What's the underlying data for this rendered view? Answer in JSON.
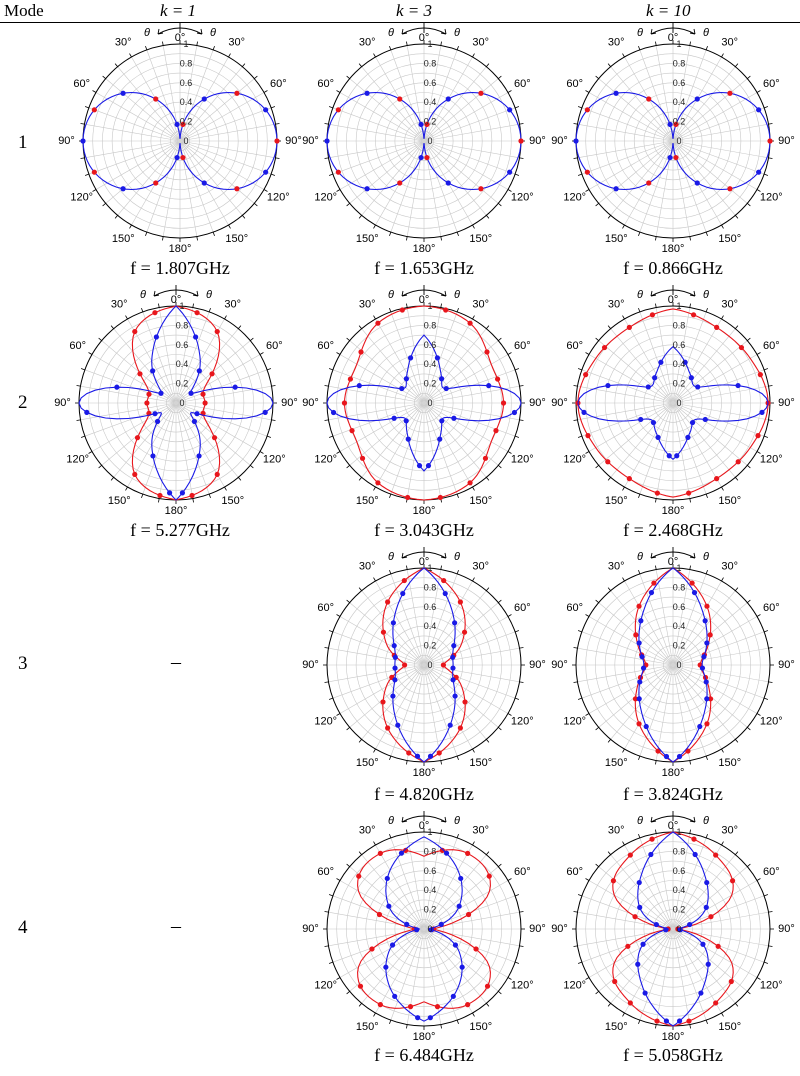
{
  "table": {
    "header": {
      "mode": "Mode",
      "columns": [
        "k = 1",
        "k = 3",
        "k = 10"
      ]
    },
    "rows": [
      {
        "mode": "1",
        "cells": [
          "f = 1.807GHz",
          "f = 1.653GHz",
          "f = 0.866GHz"
        ]
      },
      {
        "mode": "2",
        "cells": [
          "f = 5.277GHz",
          "f = 3.043GHz",
          "f = 2.468GHz"
        ]
      },
      {
        "mode": "3",
        "cells": [
          "–",
          "f = 4.820GHz",
          "f = 3.824GHz"
        ]
      },
      {
        "mode": "4",
        "cells": [
          "–",
          "f = 6.484GHz",
          "f = 5.058GHz"
        ]
      }
    ]
  },
  "polar_axis": {
    "theta_labels": [
      "0°",
      "30°",
      "60°",
      "90°",
      "120°",
      "150°",
      "180°",
      "150°",
      "120°",
      "90°",
      "60°",
      "30°"
    ],
    "r_ticks": [
      "0",
      "0.2",
      "0.4",
      "0.6",
      "0.8",
      "1"
    ],
    "theta_arrow_label": "θ"
  },
  "colors": {
    "series_a": "#e8161c",
    "series_b": "#1a1ae6",
    "grid": "#c8c8c8"
  },
  "chart_data": [
    {
      "type": "polar",
      "mode": 1,
      "k": 1,
      "rlim": [
        0,
        1
      ],
      "series": [
        {
          "pattern": "dipole",
          "values_deg_r": [
            [
              0,
              0.05
            ],
            [
              30,
              0.5
            ],
            [
              60,
              0.87
            ],
            [
              90,
              1
            ],
            [
              120,
              0.87
            ],
            [
              150,
              0.5
            ],
            [
              180,
              0.05
            ]
          ]
        }
      ]
    },
    {
      "type": "polar",
      "mode": 1,
      "k": 3,
      "rlim": [
        0,
        1
      ],
      "series": [
        {
          "pattern": "dipole",
          "values_deg_r": [
            [
              0,
              0.05
            ],
            [
              30,
              0.5
            ],
            [
              60,
              0.87
            ],
            [
              90,
              1
            ],
            [
              120,
              0.87
            ],
            [
              150,
              0.5
            ],
            [
              180,
              0.05
            ]
          ]
        }
      ]
    },
    {
      "type": "polar",
      "mode": 1,
      "k": 10,
      "rlim": [
        0,
        1
      ],
      "series": [
        {
          "pattern": "dipole",
          "values_deg_r": [
            [
              0,
              0.05
            ],
            [
              30,
              0.5
            ],
            [
              60,
              0.87
            ],
            [
              90,
              1
            ],
            [
              120,
              0.87
            ],
            [
              150,
              0.5
            ],
            [
              180,
              0.05
            ]
          ]
        }
      ]
    },
    {
      "type": "polar",
      "mode": 2,
      "k": 1,
      "rlim": [
        0,
        1
      ],
      "series": [
        {
          "values_deg_r": [
            [
              0,
              1
            ],
            [
              30,
              0.85
            ],
            [
              60,
              0.35
            ],
            [
              90,
              0.3
            ],
            [
              120,
              0.35
            ],
            [
              150,
              0.85
            ],
            [
              180,
              1
            ]
          ]
        },
        {
          "values_deg_r": [
            [
              0,
              1
            ],
            [
              30,
              0.5
            ],
            [
              60,
              0.2
            ],
            [
              90,
              1
            ],
            [
              120,
              0.2
            ],
            [
              150,
              0.5
            ],
            [
              180,
              1
            ]
          ]
        }
      ]
    },
    {
      "type": "polar",
      "mode": 2,
      "k": 3,
      "rlim": [
        0,
        1
      ],
      "series": [
        {
          "values_deg_r": [
            [
              0,
              1
            ],
            [
              30,
              0.95
            ],
            [
              60,
              0.8
            ],
            [
              90,
              0.82
            ],
            [
              120,
              0.8
            ],
            [
              150,
              0.95
            ],
            [
              180,
              1
            ]
          ]
        },
        {
          "values_deg_r": [
            [
              0,
              0.7
            ],
            [
              30,
              0.35
            ],
            [
              60,
              0.3
            ],
            [
              90,
              1
            ],
            [
              120,
              0.3
            ],
            [
              150,
              0.35
            ],
            [
              180,
              0.7
            ]
          ]
        }
      ]
    },
    {
      "type": "polar",
      "mode": 2,
      "k": 10,
      "rlim": [
        0,
        1
      ],
      "series": [
        {
          "values_deg_r": [
            [
              0,
              0.97
            ],
            [
              30,
              0.9
            ],
            [
              60,
              0.92
            ],
            [
              90,
              0.98
            ],
            [
              120,
              0.92
            ],
            [
              150,
              0.9
            ],
            [
              180,
              0.97
            ]
          ]
        },
        {
          "values_deg_r": [
            [
              0,
              0.58
            ],
            [
              30,
              0.35
            ],
            [
              60,
              0.33
            ],
            [
              90,
              0.98
            ],
            [
              120,
              0.33
            ],
            [
              150,
              0.35
            ],
            [
              180,
              0.58
            ]
          ]
        }
      ]
    },
    {
      "type": "polar",
      "mode": 3,
      "k": 3,
      "rlim": [
        0,
        1
      ],
      "series": [
        {
          "values_deg_r": [
            [
              0,
              1
            ],
            [
              30,
              0.75
            ],
            [
              60,
              0.45
            ],
            [
              90,
              0.2
            ],
            [
              120,
              0.45
            ],
            [
              150,
              0.75
            ],
            [
              180,
              1
            ]
          ]
        },
        {
          "values_deg_r": [
            [
              0,
              1
            ],
            [
              30,
              0.6
            ],
            [
              60,
              0.35
            ],
            [
              90,
              0.3
            ],
            [
              120,
              0.35
            ],
            [
              150,
              0.6
            ],
            [
              180,
              1
            ]
          ]
        }
      ]
    },
    {
      "type": "polar",
      "mode": 3,
      "k": 10,
      "rlim": [
        0,
        1
      ],
      "series": [
        {
          "values_deg_r": [
            [
              0,
              1
            ],
            [
              30,
              0.7
            ],
            [
              60,
              0.42
            ],
            [
              90,
              0.28
            ],
            [
              120,
              0.42
            ],
            [
              150,
              0.7
            ],
            [
              180,
              1
            ]
          ]
        },
        {
          "values_deg_r": [
            [
              0,
              1
            ],
            [
              30,
              0.62
            ],
            [
              60,
              0.4
            ],
            [
              90,
              0.3
            ],
            [
              120,
              0.4
            ],
            [
              150,
              0.62
            ],
            [
              180,
              1
            ]
          ]
        }
      ]
    },
    {
      "type": "polar",
      "mode": 4,
      "k": 3,
      "rlim": [
        0,
        1
      ],
      "series": [
        {
          "values_deg_r": [
            [
              0,
              0.75
            ],
            [
              30,
              0.9
            ],
            [
              60,
              0.78
            ],
            [
              90,
              0.1
            ],
            [
              120,
              0.78
            ],
            [
              150,
              0.9
            ],
            [
              180,
              0.75
            ]
          ]
        },
        {
          "values_deg_r": [
            [
              0,
              0.95
            ],
            [
              30,
              0.7
            ],
            [
              60,
              0.4
            ],
            [
              90,
              0.05
            ],
            [
              120,
              0.4
            ],
            [
              150,
              0.7
            ],
            [
              180,
              0.95
            ]
          ]
        }
      ]
    },
    {
      "type": "polar",
      "mode": 4,
      "k": 10,
      "rlim": [
        0,
        1
      ],
      "series": [
        {
          "values_deg_r": [
            [
              0,
              1
            ],
            [
              30,
              0.88
            ],
            [
              60,
              0.7
            ],
            [
              90,
              0.05
            ],
            [
              120,
              0.7
            ],
            [
              150,
              0.88
            ],
            [
              180,
              1
            ]
          ]
        },
        {
          "values_deg_r": [
            [
              0,
              1
            ],
            [
              30,
              0.65
            ],
            [
              60,
              0.38
            ],
            [
              90,
              0.05
            ],
            [
              120,
              0.38
            ],
            [
              150,
              0.65
            ],
            [
              180,
              1
            ]
          ]
        }
      ]
    }
  ]
}
